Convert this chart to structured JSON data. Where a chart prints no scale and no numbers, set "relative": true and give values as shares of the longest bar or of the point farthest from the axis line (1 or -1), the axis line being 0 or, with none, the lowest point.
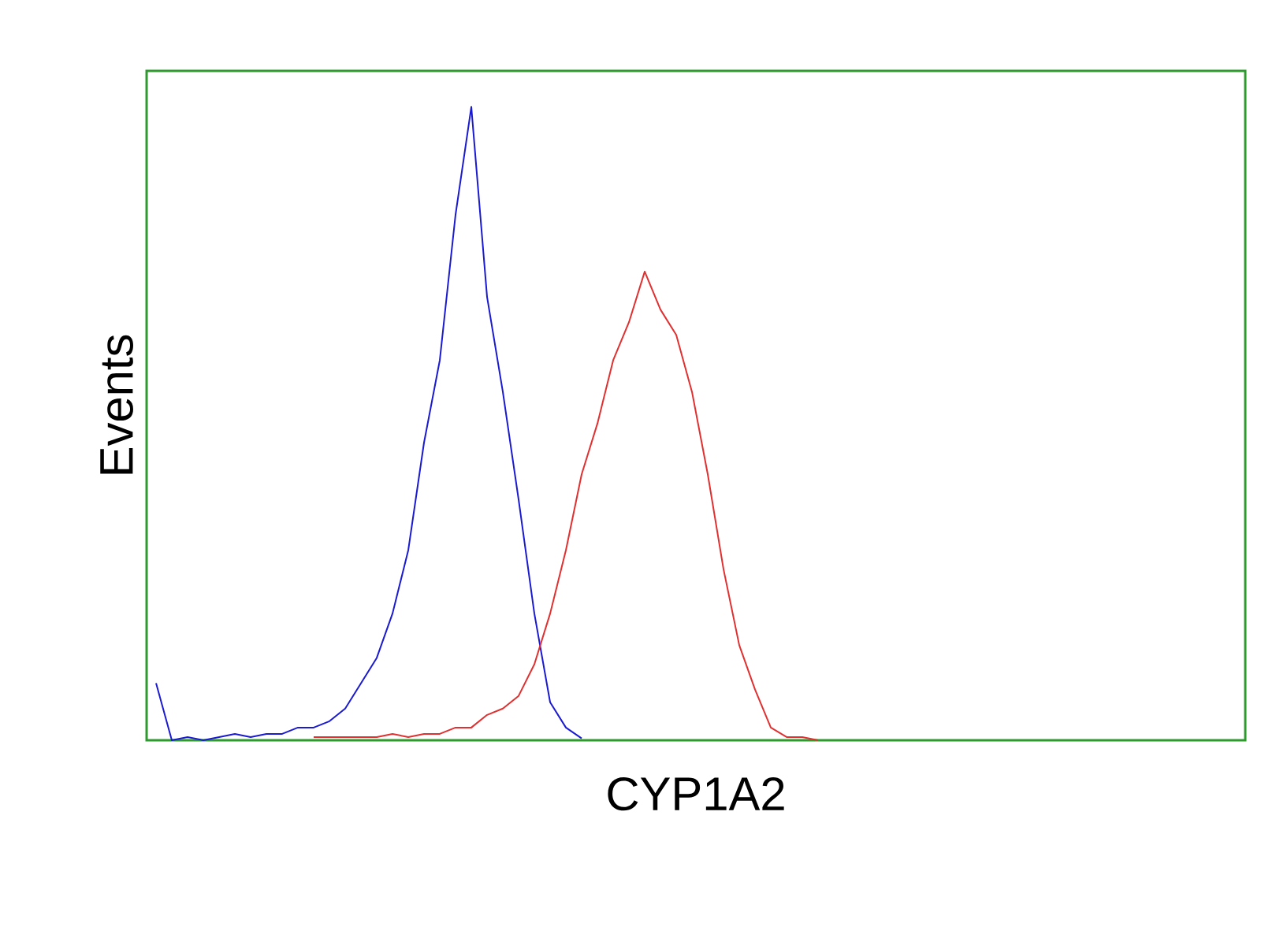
{
  "chart_data": {
    "type": "line",
    "xlabel": "CYP1A2",
    "ylabel": "Events",
    "relative": true,
    "categories": [
      null,
      null,
      null,
      null,
      null,
      null,
      null,
      null,
      null,
      null,
      null,
      null,
      null,
      null,
      null,
      null,
      null,
      null,
      null,
      null,
      null,
      null,
      null,
      null,
      null,
      null,
      null,
      null,
      null,
      null,
      null,
      null,
      null,
      null,
      null,
      null,
      null,
      null,
      null,
      null,
      null,
      null,
      null,
      null,
      null,
      null,
      null,
      null,
      null,
      null,
      null,
      null,
      null,
      null,
      null,
      null,
      null,
      null,
      null,
      null,
      null,
      null,
      null,
      null,
      null,
      null,
      null,
      null,
      null,
      null
    ],
    "series": [
      {
        "color": "#1a1ad0",
        "values": [
          0.09,
          0,
          0.005,
          0,
          0.005,
          0.01,
          0.005,
          0.01,
          0.01,
          0.02,
          0.02,
          0.03,
          0.05,
          0.09,
          0.13,
          0.2,
          0.3,
          0.47,
          0.6,
          0.83,
          1.0,
          0.7,
          0.55,
          0.38,
          0.2,
          0.06,
          0.02,
          0.003,
          null,
          null,
          null,
          null,
          null,
          null,
          null,
          null,
          null,
          null,
          null,
          null,
          null,
          null,
          null,
          null,
          null,
          null,
          null,
          null,
          null,
          null,
          null,
          null,
          null,
          null,
          null,
          null,
          null,
          null,
          null,
          null,
          null,
          null,
          null,
          null,
          null,
          null,
          null,
          null,
          null,
          null
        ]
      },
      {
        "color": "#e03030",
        "values": [
          null,
          null,
          null,
          null,
          null,
          null,
          null,
          null,
          null,
          null,
          0.005,
          0.005,
          0.005,
          0.005,
          0.005,
          0.01,
          0.005,
          0.01,
          0.01,
          0.02,
          0.02,
          0.04,
          0.05,
          0.07,
          0.12,
          0.2,
          0.3,
          0.42,
          0.5,
          0.6,
          0.66,
          0.74,
          0.68,
          0.64,
          0.55,
          0.42,
          0.27,
          0.15,
          0.08,
          0.02,
          0.005,
          0.005,
          0,
          null,
          null,
          null,
          null,
          null,
          null,
          null,
          null,
          null,
          null,
          null,
          null,
          null,
          null,
          null,
          null,
          null,
          null,
          null,
          null,
          null,
          null,
          null,
          null,
          null,
          null,
          null
        ]
      }
    ]
  }
}
